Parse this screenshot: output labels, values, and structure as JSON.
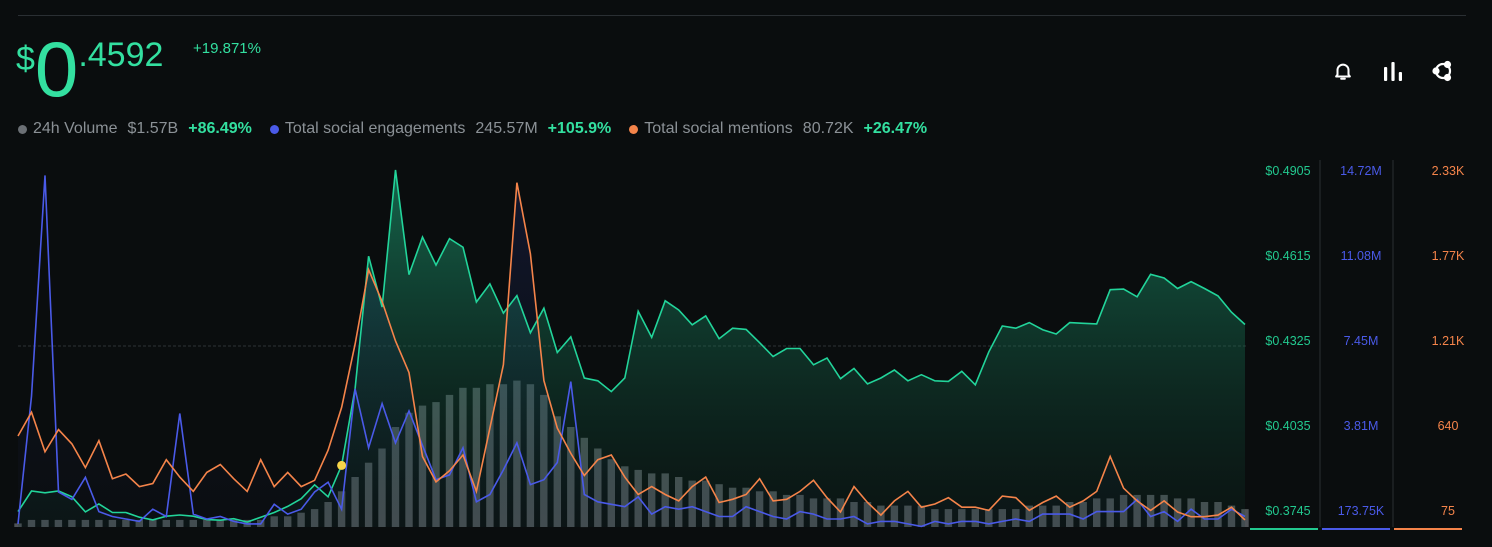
{
  "header": {
    "price_currency": "$",
    "price_integer": "0",
    "price_decimal": ".4592",
    "price_change": "+19.871%"
  },
  "toolbar": {
    "icons": [
      "bell-icon",
      "bar-chart-icon",
      "share-icon"
    ]
  },
  "legend": [
    {
      "label": "24h Volume",
      "value": "$1.57B",
      "change": "+86.49%",
      "color": "#6b7075"
    },
    {
      "label": "Total social engagements",
      "value": "245.57M",
      "change": "+105.9%",
      "color": "#4a5ae8"
    },
    {
      "label": "Total social mentions",
      "value": "80.72K",
      "change": "+26.47%",
      "color": "#f5844a"
    }
  ],
  "chart_data": {
    "type": "line",
    "series": [
      {
        "name": "Price",
        "color": "#22d49a",
        "axis_ticks": [
          "$0.4905",
          "$0.4615",
          "$0.4325",
          "$0.4035",
          "$0.3745"
        ],
        "ylim": [
          0.3745,
          0.4905
        ],
        "values": [
          0.3795,
          0.3862,
          0.3856,
          0.3862,
          0.3843,
          0.3794,
          0.382,
          0.3792,
          0.3792,
          0.3777,
          0.3768,
          0.378,
          0.3784,
          0.378,
          0.3769,
          0.3767,
          0.3772,
          0.3761,
          0.3777,
          0.3792,
          0.3812,
          0.3837,
          0.3882,
          0.3843,
          0.3945,
          0.4195,
          0.4625,
          0.446,
          0.4905,
          0.4565,
          0.4687,
          0.4596,
          0.4682,
          0.4654,
          0.4476,
          0.4535,
          0.444,
          0.4497,
          0.4376,
          0.4456,
          0.4312,
          0.4363,
          0.4229,
          0.422,
          0.4185,
          0.4229,
          0.4446,
          0.4361,
          0.448,
          0.445,
          0.4402,
          0.4431,
          0.4357,
          0.4391,
          0.4387,
          0.4344,
          0.4299,
          0.4325,
          0.4325,
          0.4272,
          0.4294,
          0.4227,
          0.426,
          0.421,
          0.4229,
          0.4255,
          0.422,
          0.424,
          0.422,
          0.4218,
          0.4251,
          0.4207,
          0.4314,
          0.4398,
          0.4391,
          0.4409,
          0.4386,
          0.4372,
          0.4409,
          0.4407,
          0.4405,
          0.4516,
          0.4518,
          0.4493,
          0.4566,
          0.4554,
          0.452,
          0.4542,
          0.452,
          0.4496,
          0.4443,
          0.4403
        ]
      },
      {
        "name": "Total social engagements",
        "color": "#4a5ae8",
        "axis_ticks": [
          "14.72M",
          "11.08M",
          "7.45M",
          "3.81M",
          "173.75K"
        ],
        "ylim": [
          173750,
          14720000
        ],
        "values": [
          300000,
          5500000,
          14500000,
          1600000,
          1300000,
          2200000,
          800000,
          600000,
          500000,
          400000,
          900000,
          600000,
          4800000,
          700000,
          500000,
          600000,
          400000,
          300000,
          300000,
          1100000,
          700000,
          900000,
          1600000,
          2000000,
          900000,
          5800000,
          3400000,
          5200000,
          3600000,
          4900000,
          3500000,
          2100000,
          2300000,
          3400000,
          1200000,
          1500000,
          2500000,
          3600000,
          1900000,
          2100000,
          2800000,
          6100000,
          1500000,
          1200000,
          1100000,
          1000000,
          1400000,
          700000,
          1000000,
          900000,
          1000000,
          800000,
          600000,
          600000,
          1000000,
          800000,
          600000,
          500000,
          800000,
          700000,
          500000,
          500000,
          600000,
          300000,
          400000,
          400000,
          300000,
          200000,
          400000,
          300000,
          400000,
          400000,
          300000,
          400000,
          500000,
          400000,
          700000,
          700000,
          700000,
          500000,
          800000,
          800000,
          800000,
          1300000,
          600000,
          800000,
          400000,
          900000,
          500000,
          500000,
          900000,
          600000
        ]
      },
      {
        "name": "Total social mentions",
        "color": "#f5844a",
        "axis_ticks": [
          "2.33K",
          "1.77K",
          "1.21K",
          "640",
          "75"
        ],
        "ylim": [
          75,
          2330
        ],
        "values": [
          650,
          800,
          550,
          690,
          600,
          450,
          620,
          380,
          410,
          330,
          350,
          500,
          390,
          300,
          420,
          470,
          380,
          300,
          500,
          330,
          420,
          330,
          370,
          560,
          830,
          1230,
          1700,
          1500,
          1250,
          1050,
          520,
          360,
          430,
          530,
          300,
          700,
          1100,
          2250,
          1800,
          1000,
          700,
          540,
          400,
          500,
          530,
          390,
          280,
          330,
          280,
          240,
          330,
          390,
          230,
          250,
          280,
          380,
          240,
          250,
          300,
          370,
          260,
          170,
          330,
          230,
          150,
          240,
          300,
          200,
          220,
          260,
          200,
          200,
          180,
          270,
          260,
          180,
          230,
          270,
          200,
          240,
          300,
          520,
          320,
          240,
          180,
          240,
          170,
          140,
          140,
          150,
          200,
          120
        ]
      },
      {
        "name": "24h Volume",
        "color": "#6b7075",
        "values": [
          0.01,
          0.02,
          0.02,
          0.02,
          0.02,
          0.02,
          0.02,
          0.02,
          0.02,
          0.02,
          0.02,
          0.02,
          0.02,
          0.02,
          0.02,
          0.02,
          0.02,
          0.02,
          0.02,
          0.03,
          0.03,
          0.04,
          0.05,
          0.07,
          0.1,
          0.14,
          0.18,
          0.22,
          0.28,
          0.32,
          0.34,
          0.35,
          0.37,
          0.39,
          0.39,
          0.4,
          0.4,
          0.41,
          0.4,
          0.37,
          0.31,
          0.28,
          0.25,
          0.22,
          0.19,
          0.17,
          0.16,
          0.15,
          0.15,
          0.14,
          0.13,
          0.13,
          0.12,
          0.11,
          0.11,
          0.1,
          0.1,
          0.09,
          0.09,
          0.08,
          0.08,
          0.08,
          0.07,
          0.07,
          0.06,
          0.06,
          0.06,
          0.06,
          0.05,
          0.05,
          0.05,
          0.05,
          0.05,
          0.05,
          0.05,
          0.06,
          0.06,
          0.06,
          0.07,
          0.07,
          0.08,
          0.08,
          0.09,
          0.09,
          0.09,
          0.09,
          0.08,
          0.08,
          0.07,
          0.07,
          0.06,
          0.05
        ]
      }
    ]
  }
}
